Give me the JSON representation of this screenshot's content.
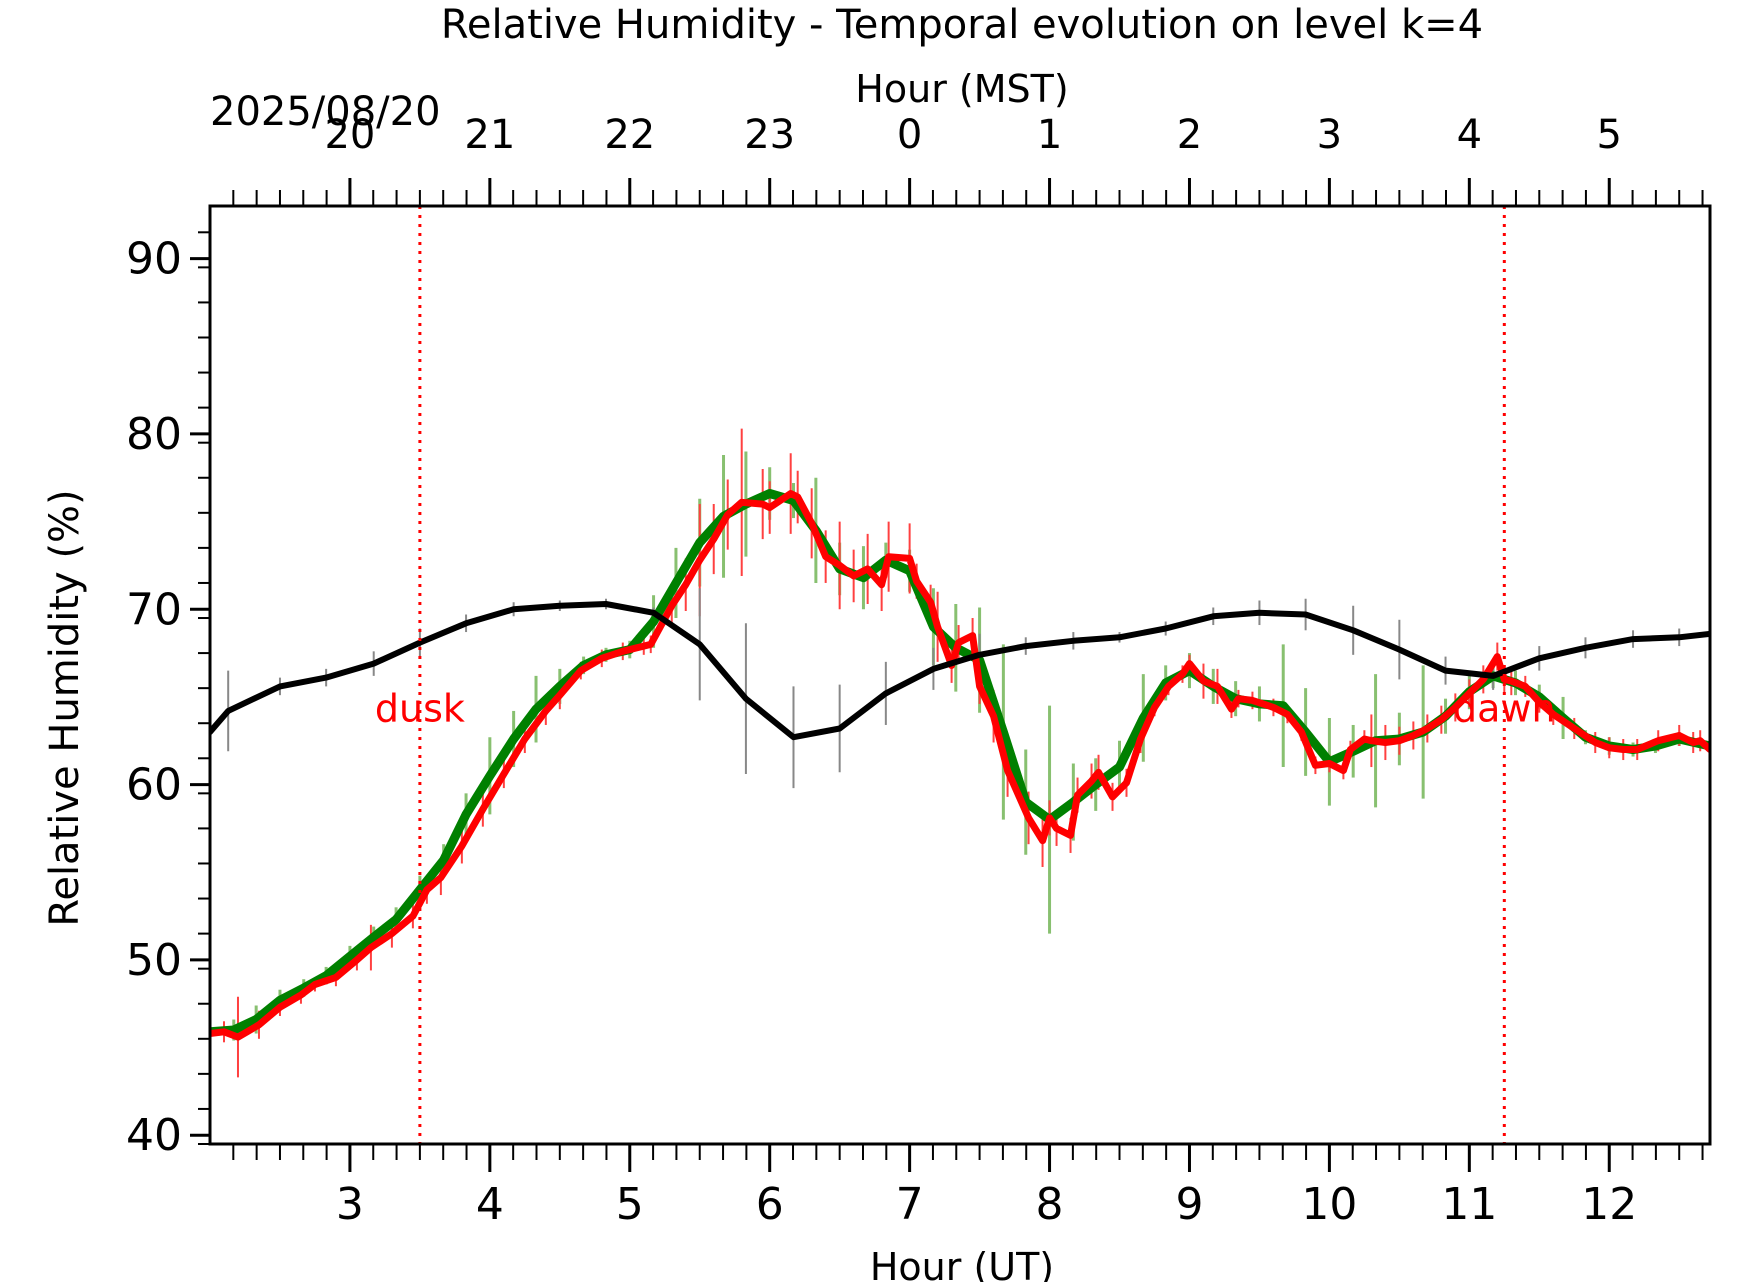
{
  "chart_data": {
    "type": "line",
    "title": "Relative Humidity - Temporal evolution on level k=4",
    "xlabel": "Hour (UT)",
    "x2label": "Hour (MST)",
    "ylabel": "Relative Humidity (%)",
    "date_label": "2025/08/20",
    "xlim": [
      2.0,
      12.72
    ],
    "ylim": [
      39.5,
      93
    ],
    "x_ticks": [
      "3",
      "4",
      "5",
      "6",
      "7",
      "8",
      "9",
      "10",
      "11",
      "12"
    ],
    "x_tick_values": [
      3,
      4,
      5,
      6,
      7,
      8,
      9,
      10,
      11,
      12
    ],
    "x2_ticks": [
      "20",
      "21",
      "22",
      "23",
      "0",
      "1",
      "2",
      "3",
      "4",
      "5"
    ],
    "x2_tick_values": [
      3,
      4,
      5,
      6,
      7,
      8,
      9,
      10,
      11,
      12
    ],
    "y_ticks": [
      "40",
      "50",
      "60",
      "70",
      "80",
      "90"
    ],
    "y_tick_values": [
      40,
      50,
      60,
      70,
      80,
      90
    ],
    "markers": [
      {
        "label": "dusk",
        "x": 3.5,
        "label_y": 63.6
      },
      {
        "label": "dawn",
        "x": 11.25,
        "label_y": 63.6
      }
    ],
    "colors": {
      "green": "#008000",
      "green_err": "#88c070",
      "red": "#ff0000",
      "red_err": "#ff4040",
      "black": "#000000",
      "black_err": "#888888",
      "marker": "#ff0000"
    },
    "series": [
      {
        "color": "green",
        "x": [
          2.0,
          2.17,
          2.33,
          2.5,
          2.67,
          2.83,
          3.0,
          3.17,
          3.33,
          3.5,
          3.67,
          3.83,
          4.0,
          4.17,
          4.33,
          4.5,
          4.67,
          4.83,
          5.0,
          5.17,
          5.33,
          5.5,
          5.67,
          5.83,
          6.0,
          6.17,
          6.33,
          6.5,
          6.67,
          6.83,
          7.0,
          7.17,
          7.33,
          7.5,
          7.67,
          7.83,
          8.0,
          8.17,
          8.33,
          8.5,
          8.67,
          8.83,
          9.0,
          9.17,
          9.33,
          9.5,
          9.67,
          9.83,
          10.0,
          10.17,
          10.33,
          10.5,
          10.67,
          10.83,
          11.0,
          11.17,
          11.33,
          11.5,
          11.67,
          11.83,
          12.0,
          12.17,
          12.33,
          12.5,
          12.72
        ],
        "y": [
          45.9,
          46.0,
          46.6,
          47.7,
          48.4,
          49.1,
          50.2,
          51.3,
          52.3,
          54.0,
          55.7,
          58.3,
          60.5,
          62.6,
          64.3,
          65.6,
          66.8,
          67.4,
          67.7,
          69.3,
          71.5,
          73.8,
          75.3,
          76.0,
          76.6,
          76.2,
          74.5,
          72.3,
          71.8,
          72.8,
          72.2,
          69.0,
          67.8,
          67.1,
          63.0,
          59.0,
          58.0,
          59.0,
          60.0,
          61.0,
          63.8,
          65.8,
          66.5,
          65.6,
          64.9,
          64.6,
          64.5,
          63.0,
          61.3,
          61.9,
          62.5,
          62.6,
          63.0,
          63.9,
          65.3,
          66.2,
          65.8,
          65.0,
          63.8,
          62.7,
          62.2,
          62.0,
          62.2,
          62.6,
          62.2
        ],
        "err": [
          0.4,
          0.6,
          0.8,
          0.6,
          0.5,
          0.5,
          0.6,
          0.6,
          0.7,
          0.8,
          0.9,
          1.2,
          2.2,
          1.6,
          1.9,
          1.0,
          0.5,
          0.4,
          0.5,
          1.5,
          2.0,
          2.5,
          3.5,
          3.0,
          1.5,
          1.0,
          3.0,
          1.5,
          1.8,
          1.0,
          1.2,
          2.2,
          2.5,
          3.0,
          5.0,
          3.0,
          6.5,
          2.2,
          1.5,
          1.5,
          2.5,
          1.0,
          1.0,
          1.0,
          1.0,
          1.0,
          3.5,
          2.5,
          2.5,
          1.5,
          3.8,
          1.5,
          3.8,
          1.0,
          1.0,
          0.7,
          0.7,
          0.7,
          1.2,
          0.4,
          0.5,
          0.4,
          0.4,
          0.4,
          0.4
        ]
      },
      {
        "color": "red",
        "x": [
          2.0,
          2.1,
          2.2,
          2.35,
          2.5,
          2.65,
          2.75,
          2.9,
          3.05,
          3.15,
          3.3,
          3.45,
          3.55,
          3.65,
          3.8,
          3.95,
          4.1,
          4.25,
          4.4,
          4.5,
          4.65,
          4.8,
          4.95,
          5.1,
          5.15,
          5.3,
          5.4,
          5.5,
          5.6,
          5.7,
          5.8,
          5.95,
          6.0,
          6.15,
          6.2,
          6.3,
          6.4,
          6.5,
          6.6,
          6.7,
          6.8,
          6.85,
          7.0,
          7.05,
          7.15,
          7.2,
          7.3,
          7.35,
          7.45,
          7.5,
          7.6,
          7.7,
          7.85,
          7.95,
          8.0,
          8.05,
          8.15,
          8.2,
          8.3,
          8.35,
          8.45,
          8.55,
          8.65,
          8.75,
          8.85,
          8.95,
          9.0,
          9.1,
          9.2,
          9.3,
          9.35,
          9.45,
          9.6,
          9.7,
          9.8,
          9.9,
          10.0,
          10.1,
          10.15,
          10.25,
          10.3,
          10.4,
          10.5,
          10.6,
          10.7,
          10.8,
          10.9,
          11.0,
          11.1,
          11.2,
          11.25,
          11.3,
          11.4,
          11.5,
          11.6,
          11.75,
          11.9,
          12.0,
          12.1,
          12.2,
          12.35,
          12.5,
          12.6,
          12.65,
          12.72
        ],
        "y": [
          45.8,
          45.9,
          45.6,
          46.3,
          47.3,
          48.0,
          48.6,
          49.0,
          50.0,
          50.7,
          51.5,
          52.5,
          54.0,
          54.7,
          56.5,
          58.6,
          60.6,
          62.6,
          64.2,
          65.1,
          66.5,
          67.2,
          67.6,
          67.9,
          68.0,
          70.2,
          71.4,
          72.8,
          74.0,
          75.4,
          76.1,
          76.0,
          75.8,
          76.6,
          76.4,
          74.9,
          73.0,
          72.5,
          71.9,
          72.3,
          71.4,
          73.0,
          72.9,
          71.6,
          70.4,
          69.0,
          66.8,
          68.1,
          68.5,
          65.6,
          63.9,
          60.8,
          58.1,
          56.8,
          58.1,
          57.5,
          57.1,
          59.4,
          60.2,
          60.7,
          59.3,
          60.1,
          62.6,
          64.4,
          65.6,
          66.3,
          66.9,
          65.9,
          65.6,
          64.3,
          64.9,
          64.8,
          64.4,
          64.0,
          63.0,
          61.1,
          61.2,
          60.8,
          62.0,
          62.6,
          62.5,
          62.4,
          62.5,
          62.8,
          63.2,
          63.7,
          64.4,
          65.2,
          66.0,
          67.3,
          66.0,
          65.9,
          65.6,
          64.7,
          64.0,
          63.2,
          62.4,
          62.1,
          62.0,
          62.0,
          62.5,
          62.8,
          62.4,
          62.5,
          62.0
        ],
        "err": [
          0.6,
          0.6,
          2.3,
          0.8,
          0.5,
          0.5,
          0.4,
          0.5,
          0.6,
          1.3,
          0.8,
          0.7,
          0.8,
          1.0,
          1.0,
          1.0,
          0.8,
          0.8,
          0.8,
          0.8,
          0.5,
          0.5,
          0.5,
          0.5,
          0.5,
          1.0,
          1.5,
          3.2,
          2.0,
          2.0,
          4.2,
          2.0,
          1.5,
          2.3,
          1.5,
          2.0,
          1.5,
          2.5,
          1.5,
          2.0,
          1.5,
          2.0,
          2.0,
          1.0,
          1.0,
          2.0,
          1.0,
          1.0,
          1.0,
          1.0,
          1.5,
          1.5,
          1.5,
          1.5,
          1.0,
          1.0,
          1.0,
          1.0,
          1.0,
          1.0,
          0.8,
          0.8,
          0.8,
          0.5,
          0.5,
          0.5,
          0.5,
          1.0,
          1.0,
          0.5,
          0.5,
          0.5,
          0.5,
          0.5,
          0.5,
          0.5,
          0.5,
          0.5,
          0.5,
          0.5,
          1.5,
          1.0,
          0.8,
          0.8,
          0.8,
          0.8,
          0.8,
          0.8,
          0.8,
          0.8,
          0.8,
          0.8,
          0.6,
          0.6,
          0.6,
          0.6,
          0.6,
          0.6,
          0.6,
          0.6,
          0.6,
          0.6,
          0.6,
          0.6,
          0.6
        ]
      },
      {
        "color": "black",
        "x": [
          2.0,
          2.13,
          2.5,
          2.83,
          3.17,
          3.5,
          3.83,
          4.17,
          4.5,
          4.83,
          5.17,
          5.5,
          5.83,
          6.17,
          6.5,
          6.83,
          7.17,
          7.5,
          7.83,
          8.17,
          8.5,
          8.83,
          9.17,
          9.5,
          9.83,
          10.17,
          10.5,
          10.83,
          11.17,
          11.5,
          11.83,
          12.17,
          12.5,
          12.72
        ],
        "y": [
          63.0,
          64.2,
          65.6,
          66.1,
          66.9,
          68.1,
          69.2,
          70.0,
          70.2,
          70.3,
          69.8,
          68.0,
          64.9,
          62.7,
          63.2,
          65.2,
          66.6,
          67.4,
          67.9,
          68.2,
          68.4,
          68.9,
          69.6,
          69.8,
          69.7,
          68.8,
          67.7,
          66.5,
          66.2,
          67.2,
          67.8,
          68.3,
          68.4,
          68.6
        ],
        "err": [
          0.0,
          2.3,
          0.5,
          0.5,
          0.7,
          0.8,
          0.5,
          0.4,
          0.3,
          0.3,
          0.3,
          3.2,
          4.3,
          2.9,
          2.5,
          1.8,
          1.2,
          1.2,
          0.5,
          0.5,
          0.3,
          0.4,
          0.5,
          0.7,
          0.9,
          1.4,
          1.7,
          0.8,
          0.8,
          0.7,
          0.6,
          0.5,
          0.5,
          0.4
        ]
      }
    ]
  }
}
